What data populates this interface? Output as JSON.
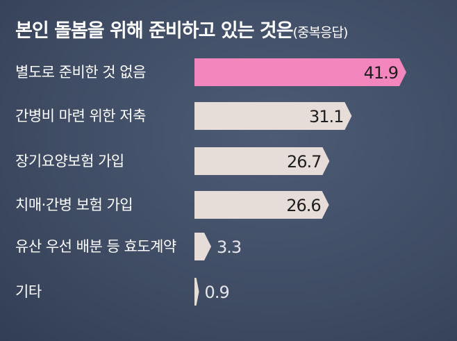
{
  "chart_data": {
    "type": "bar",
    "orientation": "horizontal",
    "title": "본인 돌봄을 위해 준비하고 있는 것은",
    "subtitle": "(중복응답)",
    "categories": [
      "별도로 준비한 것 없음",
      "간병비 마련 위한 저축",
      "장기요양보험 가입",
      "치매·간병 보험 가입",
      "유산 우선 배분 등 효도계약",
      "기타"
    ],
    "values": [
      41.9,
      31.1,
      26.7,
      26.6,
      3.3,
      0.9
    ],
    "colors": [
      "#f286bd",
      "#e6dcd8",
      "#e6dcd8",
      "#e6dcd8",
      "#e6dcd8",
      "#e6dcd8"
    ]
  }
}
